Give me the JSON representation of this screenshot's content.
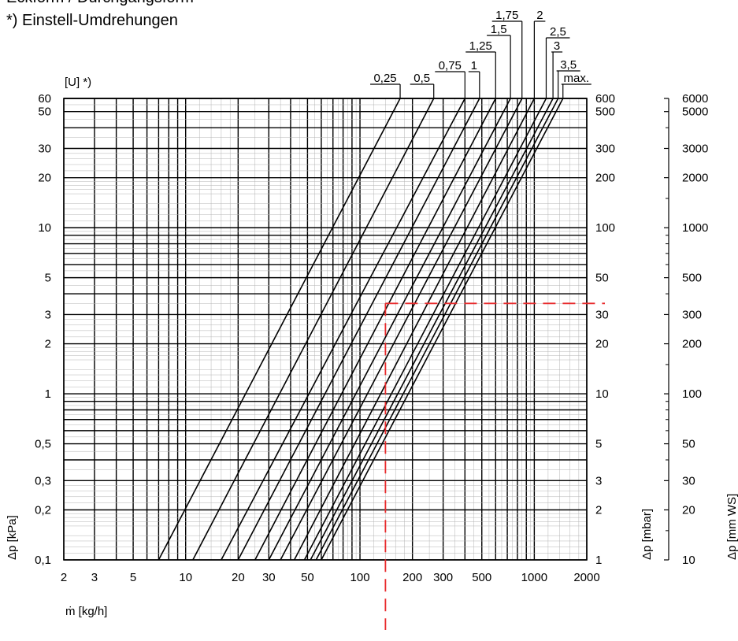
{
  "header": {
    "line1": "Eckform / Durchgangsform",
    "line2": "*) Einstell-Umdrehungen"
  },
  "chart_data": {
    "type": "line",
    "x_scale": "log",
    "y_scale": "log",
    "xlim": [
      2,
      2000
    ],
    "ylim": [
      0.1,
      60
    ],
    "grid": true,
    "xlabel": "ṁ [kg/h]",
    "ylabel": "Δp [kPa]",
    "ylabel_mbar": "Δp [mbar]",
    "ylabel_mmws": "Δp [mm WS]",
    "ylabel_turns": "[U] *)",
    "x_ticks": [
      "2",
      "3",
      "5",
      "10",
      "20",
      "30",
      "50",
      "100",
      "200",
      "300",
      "500",
      "1000",
      "2000"
    ],
    "y_ticks_kpa": [
      "60",
      "50",
      "30",
      "20",
      "10",
      "5",
      "3",
      "2",
      "1",
      "0,5",
      "0,3",
      "0,2",
      "0,1"
    ],
    "y_ticks_mbar": [
      "600",
      "500",
      "300",
      "200",
      "100",
      "50",
      "30",
      "20",
      "10",
      "5",
      "3",
      "2",
      "1"
    ],
    "y_ticks_mmws": [
      "6000",
      "5000",
      "3000",
      "2000",
      "1000",
      "500",
      "300",
      "200",
      "100",
      "50",
      "30",
      "20",
      "10"
    ],
    "series": [
      {
        "name": "0,25",
        "x": [
          7,
          170
        ],
        "y": [
          0.1,
          60
        ]
      },
      {
        "name": "0,5",
        "x": [
          11,
          265
        ],
        "y": [
          0.1,
          60
        ]
      },
      {
        "name": "0,75",
        "x": [
          16,
          400
        ],
        "y": [
          0.1,
          60
        ]
      },
      {
        "name": "1",
        "x": [
          20,
          485
        ],
        "y": [
          0.1,
          60
        ]
      },
      {
        "name": "1,25",
        "x": [
          25,
          600
        ],
        "y": [
          0.1,
          60
        ]
      },
      {
        "name": "1,5",
        "x": [
          30,
          730
        ],
        "y": [
          0.1,
          60
        ]
      },
      {
        "name": "1,75",
        "x": [
          35,
          850
        ],
        "y": [
          0.1,
          60
        ]
      },
      {
        "name": "2",
        "x": [
          42,
          1000
        ],
        "y": [
          0.1,
          60
        ]
      },
      {
        "name": "2,5",
        "x": [
          48,
          1170
        ],
        "y": [
          0.1,
          60
        ]
      },
      {
        "name": "3",
        "x": [
          52,
          1280
        ],
        "y": [
          0.1,
          60
        ]
      },
      {
        "name": "3,5",
        "x": [
          56,
          1370
        ],
        "y": [
          0.1,
          60
        ]
      },
      {
        "name": "max.",
        "x": [
          60,
          1460
        ],
        "y": [
          0.1,
          60
        ]
      }
    ],
    "reading": {
      "x": 140,
      "y": 3.5,
      "color": "#e8292b"
    },
    "line_color": "#000000",
    "grid_color": "#8c8c8c"
  }
}
